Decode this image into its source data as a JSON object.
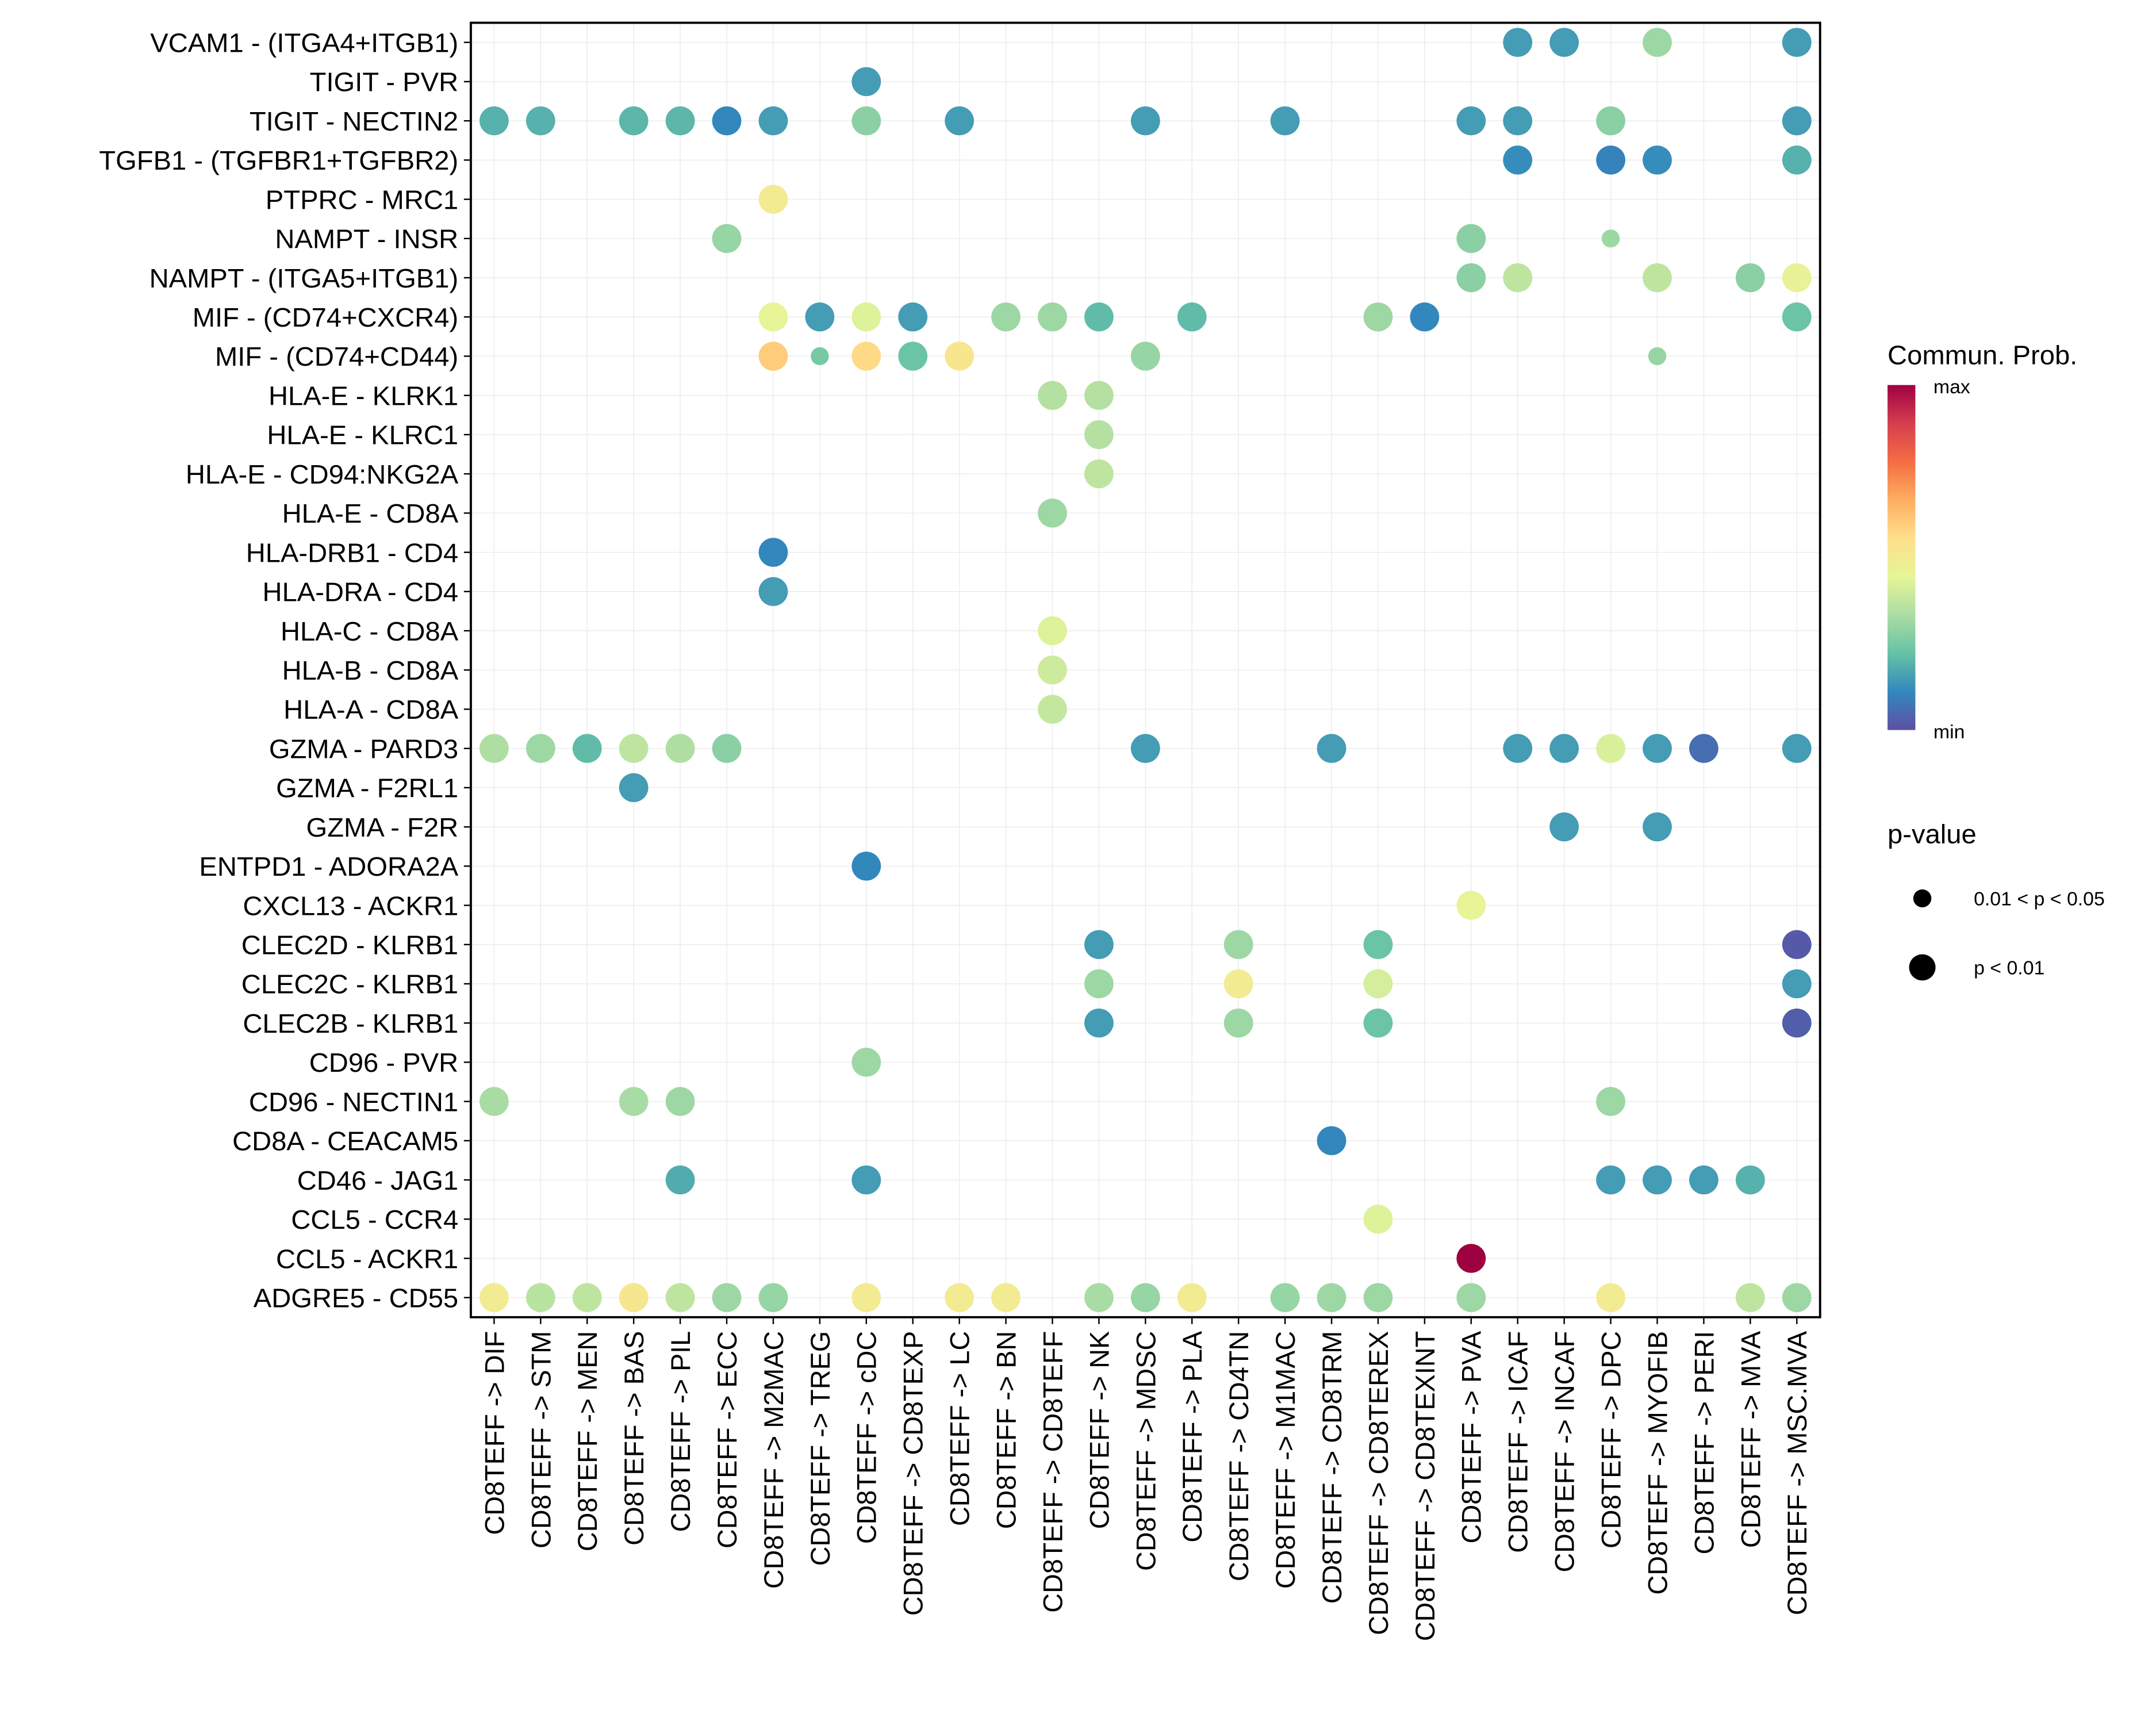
{
  "chart_data": {
    "type": "scatter",
    "subtype": "dot-matrix (ligand-receptor communication bubble plot)",
    "title": "",
    "xlabel": "",
    "ylabel": "",
    "grid": true,
    "rows": [
      "VCAM1 - (ITGA4+ITGB1)",
      "TIGIT - PVR",
      "TIGIT - NECTIN2",
      "TGFB1 - (TGFBR1+TGFBR2)",
      "PTPRC - MRC1",
      "NAMPT - INSR",
      "NAMPT - (ITGA5+ITGB1)",
      "MIF - (CD74+CXCR4)",
      "MIF - (CD74+CD44)",
      "HLA-E - KLRK1",
      "HLA-E - KLRC1",
      "HLA-E - CD94:NKG2A",
      "HLA-E - CD8A",
      "HLA-DRB1 - CD4",
      "HLA-DRA - CD4",
      "HLA-C - CD8A",
      "HLA-B - CD8A",
      "HLA-A - CD8A",
      "GZMA - PARD3",
      "GZMA - F2RL1",
      "GZMA - F2R",
      "ENTPD1 - ADORA2A",
      "CXCL13 - ACKR1",
      "CLEC2D - KLRB1",
      "CLEC2C - KLRB1",
      "CLEC2B - KLRB1",
      "CD96 - PVR",
      "CD96 - NECTIN1",
      "CD8A - CEACAM5",
      "CD46 - JAG1",
      "CCL5 - CCR4",
      "CCL5 - ACKR1",
      "ADGRE5 - CD55"
    ],
    "columns": [
      "CD8TEFF -> DIF",
      "CD8TEFF -> STM",
      "CD8TEFF -> MEN",
      "CD8TEFF -> BAS",
      "CD8TEFF -> PIL",
      "CD8TEFF -> ECC",
      "CD8TEFF -> M2MAC",
      "CD8TEFF -> TREG",
      "CD8TEFF -> cDC",
      "CD8TEFF -> CD8TEXP",
      "CD8TEFF -> LC",
      "CD8TEFF -> BN",
      "CD8TEFF -> CD8TEFF",
      "CD8TEFF -> NK",
      "CD8TEFF -> MDSC",
      "CD8TEFF -> PLA",
      "CD8TEFF -> CD4TN",
      "CD8TEFF -> M1MAC",
      "CD8TEFF -> CD8TRM",
      "CD8TEFF -> CD8TEREX",
      "CD8TEFF -> CD8TEXINT",
      "CD8TEFF -> PVA",
      "CD8TEFF -> ICAF",
      "CD8TEFF -> INCAF",
      "CD8TEFF -> DPC",
      "CD8TEFF -> MYOFIB",
      "CD8TEFF -> PERI",
      "CD8TEFF -> MVA",
      "CD8TEFF -> MSC.MVA"
    ],
    "value_scale": "relative communication probability, 0 = min, 1 = max",
    "pvalue_levels": [
      "0.01 < p < 0.05",
      "p < 0.01"
    ],
    "points": [
      {
        "row": "VCAM1 - (ITGA4+ITGB1)",
        "col": "CD8TEFF -> ICAF",
        "prob": 0.15,
        "p": "p < 0.01"
      },
      {
        "row": "VCAM1 - (ITGA4+ITGB1)",
        "col": "CD8TEFF -> INCAF",
        "prob": 0.15,
        "p": "p < 0.01"
      },
      {
        "row": "VCAM1 - (ITGA4+ITGB1)",
        "col": "CD8TEFF -> MYOFIB",
        "prob": 0.31,
        "p": "p < 0.01"
      },
      {
        "row": "VCAM1 - (ITGA4+ITGB1)",
        "col": "CD8TEFF -> MSC.MVA",
        "prob": 0.15,
        "p": "p < 0.01"
      },
      {
        "row": "TIGIT - PVR",
        "col": "CD8TEFF -> cDC",
        "prob": 0.15,
        "p": "p < 0.01"
      },
      {
        "row": "TIGIT - NECTIN2",
        "col": "CD8TEFF -> DIF",
        "prob": 0.19,
        "p": "p < 0.01"
      },
      {
        "row": "TIGIT - NECTIN2",
        "col": "CD8TEFF -> STM",
        "prob": 0.19,
        "p": "p < 0.01"
      },
      {
        "row": "TIGIT - NECTIN2",
        "col": "CD8TEFF -> BAS",
        "prob": 0.2,
        "p": "p < 0.01"
      },
      {
        "row": "TIGIT - NECTIN2",
        "col": "CD8TEFF -> PIL",
        "prob": 0.2,
        "p": "p < 0.01"
      },
      {
        "row": "TIGIT - NECTIN2",
        "col": "CD8TEFF -> ECC",
        "prob": 0.11,
        "p": "p < 0.01"
      },
      {
        "row": "TIGIT - NECTIN2",
        "col": "CD8TEFF -> M2MAC",
        "prob": 0.15,
        "p": "p < 0.01"
      },
      {
        "row": "TIGIT - NECTIN2",
        "col": "CD8TEFF -> cDC",
        "prob": 0.28,
        "p": "p < 0.01"
      },
      {
        "row": "TIGIT - NECTIN2",
        "col": "CD8TEFF -> LC",
        "prob": 0.15,
        "p": "p < 0.01"
      },
      {
        "row": "TIGIT - NECTIN2",
        "col": "CD8TEFF -> MDSC",
        "prob": 0.15,
        "p": "p < 0.01"
      },
      {
        "row": "TIGIT - NECTIN2",
        "col": "CD8TEFF -> M1MAC",
        "prob": 0.15,
        "p": "p < 0.01"
      },
      {
        "row": "TIGIT - NECTIN2",
        "col": "CD8TEFF -> PVA",
        "prob": 0.15,
        "p": "p < 0.01"
      },
      {
        "row": "TIGIT - NECTIN2",
        "col": "CD8TEFF -> ICAF",
        "prob": 0.15,
        "p": "p < 0.01"
      },
      {
        "row": "TIGIT - NECTIN2",
        "col": "CD8TEFF -> DPC",
        "prob": 0.28,
        "p": "p < 0.01"
      },
      {
        "row": "TIGIT - NECTIN2",
        "col": "CD8TEFF -> MSC.MVA",
        "prob": 0.15,
        "p": "p < 0.01"
      },
      {
        "row": "TGFB1 - (TGFBR1+TGFBR2)",
        "col": "CD8TEFF -> ICAF",
        "prob": 0.12,
        "p": "p < 0.01"
      },
      {
        "row": "TGFB1 - (TGFBR1+TGFBR2)",
        "col": "CD8TEFF -> DPC",
        "prob": 0.1,
        "p": "p < 0.01"
      },
      {
        "row": "TGFB1 - (TGFBR1+TGFBR2)",
        "col": "CD8TEFF -> MYOFIB",
        "prob": 0.12,
        "p": "p < 0.01"
      },
      {
        "row": "TGFB1 - (TGFBR1+TGFBR2)",
        "col": "CD8TEFF -> MSC.MVA",
        "prob": 0.19,
        "p": "p < 0.01"
      },
      {
        "row": "PTPRC - MRC1",
        "col": "CD8TEFF -> M2MAC",
        "prob": 0.5,
        "p": "p < 0.01"
      },
      {
        "row": "NAMPT - INSR",
        "col": "CD8TEFF -> ECC",
        "prob": 0.3,
        "p": "p < 0.01"
      },
      {
        "row": "NAMPT - INSR",
        "col": "CD8TEFF -> PVA",
        "prob": 0.28,
        "p": "p < 0.01"
      },
      {
        "row": "NAMPT - INSR",
        "col": "CD8TEFF -> DPC",
        "prob": 0.31,
        "p": "0.01 < p < 0.05"
      },
      {
        "row": "NAMPT - (ITGA5+ITGB1)",
        "col": "CD8TEFF -> PVA",
        "prob": 0.28,
        "p": "p < 0.01"
      },
      {
        "row": "NAMPT - (ITGA5+ITGB1)",
        "col": "CD8TEFF -> ICAF",
        "prob": 0.37,
        "p": "p < 0.01"
      },
      {
        "row": "NAMPT - (ITGA5+ITGB1)",
        "col": "CD8TEFF -> MYOFIB",
        "prob": 0.37,
        "p": "p < 0.01"
      },
      {
        "row": "NAMPT - (ITGA5+ITGB1)",
        "col": "CD8TEFF -> MVA",
        "prob": 0.28,
        "p": "p < 0.01"
      },
      {
        "row": "NAMPT - (ITGA5+ITGB1)",
        "col": "CD8TEFF -> MSC.MVA",
        "prob": 0.46,
        "p": "p < 0.01"
      },
      {
        "row": "MIF - (CD74+CXCR4)",
        "col": "CD8TEFF -> M2MAC",
        "prob": 0.45,
        "p": "p < 0.01"
      },
      {
        "row": "MIF - (CD74+CXCR4)",
        "col": "CD8TEFF -> TREG",
        "prob": 0.15,
        "p": "p < 0.01"
      },
      {
        "row": "MIF - (CD74+CXCR4)",
        "col": "CD8TEFF -> cDC",
        "prob": 0.43,
        "p": "p < 0.01"
      },
      {
        "row": "MIF - (CD74+CXCR4)",
        "col": "CD8TEFF -> CD8TEXP",
        "prob": 0.15,
        "p": "p < 0.01"
      },
      {
        "row": "MIF - (CD74+CXCR4)",
        "col": "CD8TEFF -> BN",
        "prob": 0.31,
        "p": "p < 0.01"
      },
      {
        "row": "MIF - (CD74+CXCR4)",
        "col": "CD8TEFF -> CD8TEFF",
        "prob": 0.31,
        "p": "p < 0.01"
      },
      {
        "row": "MIF - (CD74+CXCR4)",
        "col": "CD8TEFF -> NK",
        "prob": 0.21,
        "p": "p < 0.01"
      },
      {
        "row": "MIF - (CD74+CXCR4)",
        "col": "CD8TEFF -> PLA",
        "prob": 0.21,
        "p": "p < 0.01"
      },
      {
        "row": "MIF - (CD74+CXCR4)",
        "col": "CD8TEFF -> CD8TEREX",
        "prob": 0.31,
        "p": "p < 0.01"
      },
      {
        "row": "MIF - (CD74+CXCR4)",
        "col": "CD8TEFF -> CD8TEXINT",
        "prob": 0.11,
        "p": "p < 0.01"
      },
      {
        "row": "MIF - (CD74+CXCR4)",
        "col": "CD8TEFF -> MSC.MVA",
        "prob": 0.23,
        "p": "p < 0.01"
      },
      {
        "row": "MIF - (CD74+CD44)",
        "col": "CD8TEFF -> M2MAC",
        "prob": 0.6,
        "p": "p < 0.01"
      },
      {
        "row": "MIF - (CD74+CD44)",
        "col": "CD8TEFF -> TREG",
        "prob": 0.25,
        "p": "0.01 < p < 0.05"
      },
      {
        "row": "MIF - (CD74+CD44)",
        "col": "CD8TEFF -> cDC",
        "prob": 0.57,
        "p": "p < 0.01"
      },
      {
        "row": "MIF - (CD74+CD44)",
        "col": "CD8TEFF -> CD8TEXP",
        "prob": 0.23,
        "p": "p < 0.01"
      },
      {
        "row": "MIF - (CD74+CD44)",
        "col": "CD8TEFF -> LC",
        "prob": 0.53,
        "p": "p < 0.01"
      },
      {
        "row": "MIF - (CD74+CD44)",
        "col": "CD8TEFF -> MDSC",
        "prob": 0.3,
        "p": "p < 0.01"
      },
      {
        "row": "MIF - (CD74+CD44)",
        "col": "CD8TEFF -> MYOFIB",
        "prob": 0.3,
        "p": "0.01 < p < 0.05"
      },
      {
        "row": "HLA-E - KLRK1",
        "col": "CD8TEFF -> CD8TEFF",
        "prob": 0.35,
        "p": "p < 0.01"
      },
      {
        "row": "HLA-E - KLRK1",
        "col": "CD8TEFF -> NK",
        "prob": 0.35,
        "p": "p < 0.01"
      },
      {
        "row": "HLA-E - KLRC1",
        "col": "CD8TEFF -> NK",
        "prob": 0.35,
        "p": "p < 0.01"
      },
      {
        "row": "HLA-E - CD94:NKG2A",
        "col": "CD8TEFF -> NK",
        "prob": 0.37,
        "p": "p < 0.01"
      },
      {
        "row": "HLA-E - CD8A",
        "col": "CD8TEFF -> CD8TEFF",
        "prob": 0.31,
        "p": "p < 0.01"
      },
      {
        "row": "HLA-DRB1 - CD4",
        "col": "CD8TEFF -> M2MAC",
        "prob": 0.11,
        "p": "p < 0.01"
      },
      {
        "row": "HLA-DRA - CD4",
        "col": "CD8TEFF -> M2MAC",
        "prob": 0.15,
        "p": "p < 0.01"
      },
      {
        "row": "HLA-C - CD8A",
        "col": "CD8TEFF -> CD8TEFF",
        "prob": 0.43,
        "p": "p < 0.01"
      },
      {
        "row": "HLA-B - CD8A",
        "col": "CD8TEFF -> CD8TEFF",
        "prob": 0.4,
        "p": "p < 0.01"
      },
      {
        "row": "HLA-A - CD8A",
        "col": "CD8TEFF -> CD8TEFF",
        "prob": 0.38,
        "p": "p < 0.01"
      },
      {
        "row": "GZMA - PARD3",
        "col": "CD8TEFF -> DIF",
        "prob": 0.34,
        "p": "p < 0.01"
      },
      {
        "row": "GZMA - PARD3",
        "col": "CD8TEFF -> STM",
        "prob": 0.31,
        "p": "p < 0.01"
      },
      {
        "row": "GZMA - PARD3",
        "col": "CD8TEFF -> MEN",
        "prob": 0.21,
        "p": "p < 0.01"
      },
      {
        "row": "GZMA - PARD3",
        "col": "CD8TEFF -> BAS",
        "prob": 0.37,
        "p": "p < 0.01"
      },
      {
        "row": "GZMA - PARD3",
        "col": "CD8TEFF -> PIL",
        "prob": 0.34,
        "p": "p < 0.01"
      },
      {
        "row": "GZMA - PARD3",
        "col": "CD8TEFF -> ECC",
        "prob": 0.28,
        "p": "p < 0.01"
      },
      {
        "row": "GZMA - PARD3",
        "col": "CD8TEFF -> MDSC",
        "prob": 0.15,
        "p": "p < 0.01"
      },
      {
        "row": "GZMA - PARD3",
        "col": "CD8TEFF -> CD8TRM",
        "prob": 0.15,
        "p": "p < 0.01"
      },
      {
        "row": "GZMA - PARD3",
        "col": "CD8TEFF -> ICAF",
        "prob": 0.15,
        "p": "p < 0.01"
      },
      {
        "row": "GZMA - PARD3",
        "col": "CD8TEFF -> INCAF",
        "prob": 0.15,
        "p": "p < 0.01"
      },
      {
        "row": "GZMA - PARD3",
        "col": "CD8TEFF -> DPC",
        "prob": 0.42,
        "p": "p < 0.01"
      },
      {
        "row": "GZMA - PARD3",
        "col": "CD8TEFF -> MYOFIB",
        "prob": 0.15,
        "p": "p < 0.01"
      },
      {
        "row": "GZMA - PARD3",
        "col": "CD8TEFF -> PERI",
        "prob": 0.06,
        "p": "p < 0.01"
      },
      {
        "row": "GZMA - PARD3",
        "col": "CD8TEFF -> MSC.MVA",
        "prob": 0.15,
        "p": "p < 0.01"
      },
      {
        "row": "GZMA - F2RL1",
        "col": "CD8TEFF -> BAS",
        "prob": 0.15,
        "p": "p < 0.01"
      },
      {
        "row": "GZMA - F2R",
        "col": "CD8TEFF -> INCAF",
        "prob": 0.15,
        "p": "p < 0.01"
      },
      {
        "row": "GZMA - F2R",
        "col": "CD8TEFF -> MYOFIB",
        "prob": 0.15,
        "p": "p < 0.01"
      },
      {
        "row": "ENTPD1 - ADORA2A",
        "col": "CD8TEFF -> cDC",
        "prob": 0.11,
        "p": "p < 0.01"
      },
      {
        "row": "CXCL13 - ACKR1",
        "col": "CD8TEFF -> PVA",
        "prob": 0.45,
        "p": "p < 0.01"
      },
      {
        "row": "CLEC2D - KLRB1",
        "col": "CD8TEFF -> NK",
        "prob": 0.15,
        "p": "p < 0.01"
      },
      {
        "row": "CLEC2D - KLRB1",
        "col": "CD8TEFF -> CD4TN",
        "prob": 0.31,
        "p": "p < 0.01"
      },
      {
        "row": "CLEC2D - KLRB1",
        "col": "CD8TEFF -> CD8TEREX",
        "prob": 0.23,
        "p": "p < 0.01"
      },
      {
        "row": "CLEC2D - KLRB1",
        "col": "CD8TEFF -> MSC.MVA",
        "prob": 0.02,
        "p": "p < 0.01"
      },
      {
        "row": "CLEC2C - KLRB1",
        "col": "CD8TEFF -> NK",
        "prob": 0.31,
        "p": "p < 0.01"
      },
      {
        "row": "CLEC2C - KLRB1",
        "col": "CD8TEFF -> CD4TN",
        "prob": 0.5,
        "p": "p < 0.01"
      },
      {
        "row": "CLEC2C - KLRB1",
        "col": "CD8TEFF -> CD8TEREX",
        "prob": 0.41,
        "p": "p < 0.01"
      },
      {
        "row": "CLEC2C - KLRB1",
        "col": "CD8TEFF -> MSC.MVA",
        "prob": 0.15,
        "p": "p < 0.01"
      },
      {
        "row": "CLEC2B - KLRB1",
        "col": "CD8TEFF -> NK",
        "prob": 0.15,
        "p": "p < 0.01"
      },
      {
        "row": "CLEC2B - KLRB1",
        "col": "CD8TEFF -> CD4TN",
        "prob": 0.31,
        "p": "p < 0.01"
      },
      {
        "row": "CLEC2B - KLRB1",
        "col": "CD8TEFF -> CD8TEREX",
        "prob": 0.23,
        "p": "p < 0.01"
      },
      {
        "row": "CLEC2B - KLRB1",
        "col": "CD8TEFF -> MSC.MVA",
        "prob": 0.03,
        "p": "p < 0.01"
      },
      {
        "row": "CD96 - PVR",
        "col": "CD8TEFF -> cDC",
        "prob": 0.31,
        "p": "p < 0.01"
      },
      {
        "row": "CD96 - NECTIN1",
        "col": "CD8TEFF -> DIF",
        "prob": 0.33,
        "p": "p < 0.01"
      },
      {
        "row": "CD96 - NECTIN1",
        "col": "CD8TEFF -> BAS",
        "prob": 0.33,
        "p": "p < 0.01"
      },
      {
        "row": "CD96 - NECTIN1",
        "col": "CD8TEFF -> PIL",
        "prob": 0.31,
        "p": "p < 0.01"
      },
      {
        "row": "CD96 - NECTIN1",
        "col": "CD8TEFF -> DPC",
        "prob": 0.31,
        "p": "p < 0.01"
      },
      {
        "row": "CD8A - CEACAM5",
        "col": "CD8TEFF -> CD8TRM",
        "prob": 0.11,
        "p": "p < 0.01"
      },
      {
        "row": "CD46 - JAG1",
        "col": "CD8TEFF -> PIL",
        "prob": 0.18,
        "p": "p < 0.01"
      },
      {
        "row": "CD46 - JAG1",
        "col": "CD8TEFF -> cDC",
        "prob": 0.15,
        "p": "p < 0.01"
      },
      {
        "row": "CD46 - JAG1",
        "col": "CD8TEFF -> DPC",
        "prob": 0.15,
        "p": "p < 0.01"
      },
      {
        "row": "CD46 - JAG1",
        "col": "CD8TEFF -> MYOFIB",
        "prob": 0.15,
        "p": "p < 0.01"
      },
      {
        "row": "CD46 - JAG1",
        "col": "CD8TEFF -> PERI",
        "prob": 0.15,
        "p": "p < 0.01"
      },
      {
        "row": "CD46 - JAG1",
        "col": "CD8TEFF -> MVA",
        "prob": 0.19,
        "p": "p < 0.01"
      },
      {
        "row": "CCL5 - CCR4",
        "col": "CD8TEFF -> CD8TEREX",
        "prob": 0.43,
        "p": "p < 0.01"
      },
      {
        "row": "CCL5 - ACKR1",
        "col": "CD8TEFF -> PVA",
        "prob": 1.0,
        "p": "p < 0.01"
      },
      {
        "row": "ADGRE5 - CD55",
        "col": "CD8TEFF -> DIF",
        "prob": 0.5,
        "p": "p < 0.01"
      },
      {
        "row": "ADGRE5 - CD55",
        "col": "CD8TEFF -> STM",
        "prob": 0.36,
        "p": "p < 0.01"
      },
      {
        "row": "ADGRE5 - CD55",
        "col": "CD8TEFF -> MEN",
        "prob": 0.37,
        "p": "p < 0.01"
      },
      {
        "row": "ADGRE5 - CD55",
        "col": "CD8TEFF -> BAS",
        "prob": 0.52,
        "p": "p < 0.01"
      },
      {
        "row": "ADGRE5 - CD55",
        "col": "CD8TEFF -> PIL",
        "prob": 0.37,
        "p": "p < 0.01"
      },
      {
        "row": "ADGRE5 - CD55",
        "col": "CD8TEFF -> ECC",
        "prob": 0.31,
        "p": "p < 0.01"
      },
      {
        "row": "ADGRE5 - CD55",
        "col": "CD8TEFF -> M2MAC",
        "prob": 0.3,
        "p": "p < 0.01"
      },
      {
        "row": "ADGRE5 - CD55",
        "col": "CD8TEFF -> cDC",
        "prob": 0.5,
        "p": "p < 0.01"
      },
      {
        "row": "ADGRE5 - CD55",
        "col": "CD8TEFF -> LC",
        "prob": 0.5,
        "p": "p < 0.01"
      },
      {
        "row": "ADGRE5 - CD55",
        "col": "CD8TEFF -> BN",
        "prob": 0.5,
        "p": "p < 0.01"
      },
      {
        "row": "ADGRE5 - CD55",
        "col": "CD8TEFF -> NK",
        "prob": 0.33,
        "p": "p < 0.01"
      },
      {
        "row": "ADGRE5 - CD55",
        "col": "CD8TEFF -> MDSC",
        "prob": 0.3,
        "p": "p < 0.01"
      },
      {
        "row": "ADGRE5 - CD55",
        "col": "CD8TEFF -> PLA",
        "prob": 0.5,
        "p": "p < 0.01"
      },
      {
        "row": "ADGRE5 - CD55",
        "col": "CD8TEFF -> M1MAC",
        "prob": 0.3,
        "p": "p < 0.01"
      },
      {
        "row": "ADGRE5 - CD55",
        "col": "CD8TEFF -> CD8TRM",
        "prob": 0.31,
        "p": "p < 0.01"
      },
      {
        "row": "ADGRE5 - CD55",
        "col": "CD8TEFF -> CD8TEREX",
        "prob": 0.31,
        "p": "p < 0.01"
      },
      {
        "row": "ADGRE5 - CD55",
        "col": "CD8TEFF -> PVA",
        "prob": 0.31,
        "p": "p < 0.01"
      },
      {
        "row": "ADGRE5 - CD55",
        "col": "CD8TEFF -> DPC",
        "prob": 0.5,
        "p": "p < 0.01"
      },
      {
        "row": "ADGRE5 - CD55",
        "col": "CD8TEFF -> MVA",
        "prob": 0.37,
        "p": "p < 0.01"
      },
      {
        "row": "ADGRE5 - CD55",
        "col": "CD8TEFF -> MSC.MVA",
        "prob": 0.31,
        "p": "p < 0.01"
      }
    ],
    "legend": {
      "placement": "right",
      "colorbar": {
        "title": "Commun. Prob.",
        "max_label": "max",
        "min_label": "min",
        "palette": [
          "#5E4FA2",
          "#3288BD",
          "#66C2A5",
          "#ABDDA4",
          "#E6F598",
          "#FEE08B",
          "#FDAE61",
          "#F46D43",
          "#D53E4F",
          "#9E0142"
        ]
      },
      "size": {
        "title": "p-value",
        "entries": [
          "0.01 < p < 0.05",
          "p < 0.01"
        ]
      }
    }
  }
}
